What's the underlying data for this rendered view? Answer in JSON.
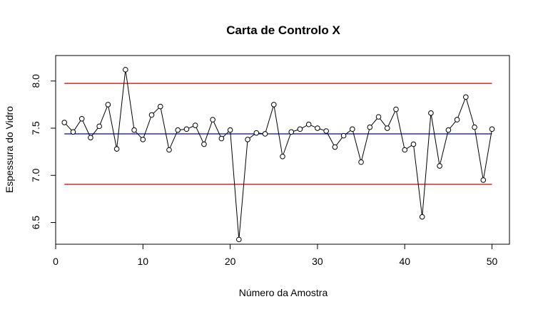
{
  "chart_data": {
    "type": "line",
    "title": "Carta de Controlo X",
    "xlabel": "Número da Amostra",
    "ylabel": "Espessura do Vidro",
    "xlim": [
      0,
      52
    ],
    "ylim": [
      6.27,
      8.27
    ],
    "x_ticks": [
      "0",
      "10",
      "20",
      "30",
      "40",
      "50"
    ],
    "y_ticks": [
      "6.5",
      "7.0",
      "7.5",
      "8.0"
    ],
    "grid": false,
    "series": [
      {
        "x": [
          1,
          2,
          3,
          4,
          5,
          6,
          7,
          8,
          9,
          10,
          11,
          12,
          13,
          14,
          15,
          16,
          17,
          18,
          19,
          20,
          21,
          22,
          23,
          24,
          25,
          26,
          27,
          28,
          29,
          30,
          31,
          32,
          33,
          34,
          35,
          36,
          37,
          38,
          39,
          40,
          41,
          42,
          43,
          44,
          45,
          46,
          47,
          48,
          49,
          50
        ],
        "values": [
          7.56,
          7.46,
          7.6,
          7.4,
          7.52,
          7.75,
          7.28,
          8.12,
          7.48,
          7.38,
          7.64,
          7.73,
          7.27,
          7.48,
          7.49,
          7.53,
          7.33,
          7.59,
          7.39,
          7.48,
          6.32,
          7.38,
          7.45,
          7.44,
          7.75,
          7.2,
          7.46,
          7.49,
          7.54,
          7.5,
          7.47,
          7.3,
          7.42,
          7.49,
          7.14,
          7.51,
          7.62,
          7.5,
          7.7,
          7.27,
          7.33,
          6.56,
          7.66,
          7.1,
          7.48,
          7.59,
          7.83,
          7.51,
          6.95,
          7.49
        ],
        "color": "#000000"
      }
    ],
    "reference_lines": [
      {
        "y": 7.975,
        "color": "#cc0000"
      },
      {
        "y": 7.44,
        "color": "#0000cc"
      },
      {
        "y": 6.905,
        "color": "#cc0000"
      }
    ],
    "reference_x_range": [
      1,
      50
    ]
  }
}
